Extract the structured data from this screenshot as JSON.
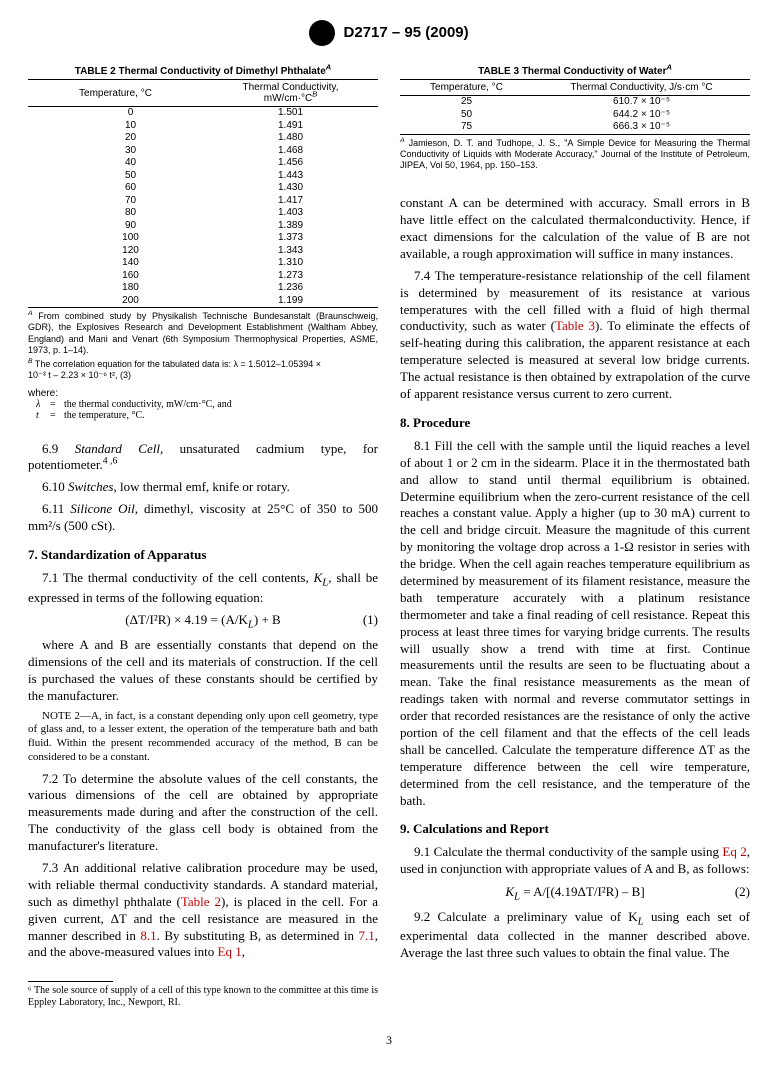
{
  "header": {
    "doc_id": "D2717 – 95 (2009)"
  },
  "table2": {
    "caption": "TABLE 2 Thermal Conductivity of Dimethyl Phthalate",
    "cap_sup": "A",
    "h1": "Temperature, °C",
    "h2": "Thermal Conductivity,",
    "h2b": "mW/cm·°C",
    "h2_sup": "B",
    "rows": [
      [
        "0",
        "1.501"
      ],
      [
        "10",
        "1.491"
      ],
      [
        "20",
        "1.480"
      ],
      [
        "30",
        "1.468"
      ],
      [
        "40",
        "1.456"
      ],
      [
        "50",
        "1.443"
      ],
      [
        "60",
        "1.430"
      ],
      [
        "70",
        "1.417"
      ],
      [
        "80",
        "1.403"
      ],
      [
        "90",
        "1.389"
      ],
      [
        "100",
        "1.373"
      ],
      [
        "120",
        "1.343"
      ],
      [
        "140",
        "1.310"
      ],
      [
        "160",
        "1.273"
      ],
      [
        "180",
        "1.236"
      ],
      [
        "200",
        "1.199"
      ]
    ],
    "noteA": "From combined study by Physikalish Technische Bundesanstalt (Braunschweig, GDR), the Explosives Research and Development Establishment (Waltham Abbey, England) and Mani and Venart (6th Symposium Thermophysical Properties, ASME, 1973, p. 1–14).",
    "noteB_a": "The correlation equation for the tabulated data is: λ = 1.5012–1.05394 ×",
    "noteB_b": "10⁻³ t – 2.23 × 10⁻⁶ t², (3)",
    "where_lbl": "where:",
    "where1": "the thermal conductivity, mW/cm·°C, and",
    "where2": "the temperature, °C."
  },
  "table3": {
    "caption": "TABLE 3 Thermal Conductivity of Water",
    "cap_sup": "A",
    "h1": "Temperature, °C",
    "h2": "Thermal Conductivity, J/s·cm °C",
    "rows": [
      [
        "25",
        "610.7 × 10⁻⁵"
      ],
      [
        "50",
        "644.2 × 10⁻⁵"
      ],
      [
        "75",
        "666.3 × 10⁻⁵"
      ]
    ],
    "noteA": "Jamieson, D. T. and Tudhope, J. S., \"A Simple Device for Measuring the Thermal Conductivity of Liquids with Moderate Accuracy,\" Journal of the Institute of Petroleum, JIPEA, Vol 50, 1964, pp. 150–153."
  },
  "p69a": "6.9 ",
  "p69b": "Standard Cell,",
  "p69c": " unsaturated cadmium type, for potentiometer.",
  "p69sup": "4 ,6",
  "p610a": "6.10 ",
  "p610b": "Switches,",
  "p610c": " low thermal emf, knife or rotary.",
  "p611a": "6.11 ",
  "p611b": "Silicone Oil,",
  "p611c": " dimethyl, viscosity at 25°C of 350 to 500 mm²/s (500 cSt).",
  "s7": "7. Standardization of Apparatus",
  "p71a": "7.1 The thermal conductivity of the cell contents, ",
  "p71b": "K",
  "p71c": ", shall be expressed in terms of the following equation:",
  "eq1": "(ΔT/I²R) × 4.19 = (A/K",
  "eq1b": ") + B",
  "eq1n": "(1)",
  "p71d": "where A and B are essentially constants that depend on the dimensions of the cell and its materials of construction. If the cell is purchased the values of these constants should be certified by the manufacturer.",
  "note2a": "NOTE",
  "note2b": " 2—A, in fact, is a constant depending only upon cell geometry, type of glass and, to a lesser extent, the operation of the temperature bath and bath fluid. Within the present recommended accuracy of the method, B can be considered to be a constant.",
  "p72": "7.2 To determine the absolute values of the cell constants, the various dimensions of the cell are obtained by appropriate measurements made during and after the construction of the cell. The conductivity of the glass cell body is obtained from the manufacturer's literature.",
  "p73a": "7.3 An additional relative calibration procedure may be used, with reliable thermal conductivity standards. A standard material, such as dimethyl phthalate (",
  "p73b": "Table 2",
  "p73c": "), is placed in the cell. For a given current, ΔT and the cell resistance are measured in the manner described in ",
  "p73d": "8.1",
  "p73e": ". By substituting B, as determined in ",
  "p73f": "7.1",
  "p73g": ", and the above-measured values into ",
  "p73h": "Eq 1",
  "p73i": ",",
  "pR1a": "constant A can be determined with accuracy. Small errors in B have little effect on the calculated thermalconductivity. Hence, if exact dimensions for the calculation of the value of B are not available, a rough approximation will suffice in many instances.",
  "p74a": "7.4 The temperature-resistance relationship of the cell filament is determined by measurement of its resistance at various temperatures with the cell filled with a fluid of high thermal conductivity, such as water (",
  "p74b": "Table 3",
  "p74c": "). To eliminate the effects of self-heating during this calibration, the apparent resistance at each temperature selected is measured at several low bridge currents. The actual resistance is then obtained by extrapolation of the curve of apparent resistance versus current to zero current.",
  "s8": "8. Procedure",
  "p81": "8.1 Fill the cell with the sample until the liquid reaches a level of about 1 or 2 cm in the sidearm. Place it in the thermostated bath and allow to stand until thermal equilibrium is obtained. Determine equilibrium when the zero-current resistance of the cell reaches a constant value. Apply a higher (up to 30 mA) current to the cell and bridge circuit. Measure the magnitude of this current by monitoring the voltage drop across a 1-Ω resistor in series with the bridge. When the cell again reaches temperature equilibrium as determined by measurement of its filament resistance, measure the bath temperature accurately with a platinum resistance thermometer and take a final reading of cell resistance. Repeat this process at least three times for varying bridge currents. The results will usually show a trend with time at first. Continue measurements until the results are seen to be fluctuating about a mean. Take the final resistance measurements as the mean of readings taken with normal and reverse commutator settings in order that recorded resistances are the resistance of only the active portion of the cell filament and that the effects of the cell leads shall be cancelled. Calculate the temperature difference ΔT as the temperature difference between the cell wire temperature, determined from the cell resistance, and the temperature of the bath.",
  "s9": "9. Calculations and Report",
  "p91a": "9.1 Calculate the thermal conductivity of the sample using ",
  "p91b": "Eq 2",
  "p91c": ", used in conjunction with appropriate values of A and B, as follows:",
  "eq2": "K",
  "eq2b": " = A/[(4.19ΔT/I²R)  –  B]",
  "eq2n": "(2)",
  "p92": "9.2 Calculate a preliminary value of K",
  "p92b": " using each set of experimental data collected in the manner described above. Average the last three such values to obtain the final value. The",
  "fn": "⁶ The sole source of supply of a cell of this type known to the committee at this time is Eppley Laboratory, Inc., Newport, RI.",
  "pg": "3"
}
